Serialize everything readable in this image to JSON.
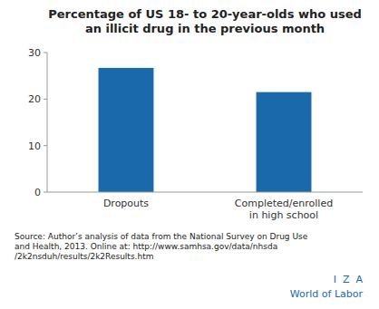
{
  "chart_data": {
    "type": "bar",
    "title": "Percentage of US 18- to 20-year-olds who used\nan illicit drug in the previous month",
    "categories": [
      "Dropouts",
      "Completed/enrolled\nin high school"
    ],
    "values": [
      26.7,
      21.5
    ],
    "color": "#1a6aab",
    "ylim": [
      0,
      30
    ],
    "yticks": [
      0,
      10,
      20,
      30
    ],
    "annotations": [
      "Source: Author’s analysis of data from the National Survey on Drug Use\nand Health, 2013. Online at: http://www.samhsa.gov/data/nhsda\n/2k2nsduh/results/2k2Results.htm",
      "I  Z  A",
      "World of Labor"
    ]
  }
}
